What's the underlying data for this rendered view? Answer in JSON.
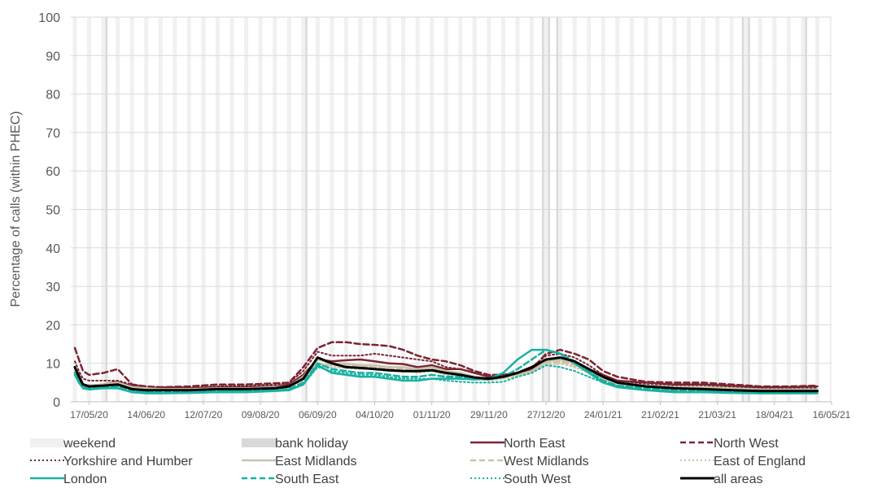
{
  "chart_data": {
    "type": "line",
    "ylabel": "Percentage of calls (within PHEC)",
    "ylim": [
      0,
      100
    ],
    "yticks": [
      "0",
      "10",
      "20",
      "30",
      "40",
      "50",
      "60",
      "70",
      "80",
      "90",
      "100"
    ],
    "xlim": [
      "2020-05-08",
      "2021-05-16"
    ],
    "xtick_dates": [
      "2020-05-17",
      "2020-06-14",
      "2020-07-12",
      "2020-08-09",
      "2020-09-06",
      "2020-10-04",
      "2020-11-01",
      "2020-11-29",
      "2020-12-27",
      "2021-01-24",
      "2021-02-21",
      "2021-03-21",
      "2021-04-18",
      "2021-05-16"
    ],
    "xtick_labels": [
      "17/05/20",
      "14/06/20",
      "12/07/20",
      "09/08/20",
      "06/09/20",
      "04/10/20",
      "01/11/20",
      "29/11/20",
      "27/12/20",
      "24/01/21",
      "21/02/21",
      "21/03/21",
      "18/04/21",
      "16/05/21"
    ],
    "background": {
      "weekend_label": "weekend",
      "bank_holiday_label": "bank holiday",
      "weekend_color": "#f0f0f0",
      "bank_holiday_color": "#d9d9d9",
      "bank_holidays": [
        "2020-05-25",
        "2020-08-31",
        "2020-12-25",
        "2020-12-28",
        "2021-01-01",
        "2021-04-02",
        "2021-04-05",
        "2021-05-03"
      ]
    },
    "x": [
      "2020-05-10",
      "2020-05-12",
      "2020-05-14",
      "2020-05-17",
      "2020-05-24",
      "2020-05-31",
      "2020-06-07",
      "2020-06-14",
      "2020-06-21",
      "2020-07-05",
      "2020-07-19",
      "2020-08-02",
      "2020-08-16",
      "2020-08-23",
      "2020-08-30",
      "2020-09-06",
      "2020-09-13",
      "2020-09-20",
      "2020-09-27",
      "2020-10-04",
      "2020-10-11",
      "2020-10-18",
      "2020-10-25",
      "2020-11-01",
      "2020-11-08",
      "2020-11-15",
      "2020-11-22",
      "2020-11-29",
      "2020-12-06",
      "2020-12-13",
      "2020-12-20",
      "2020-12-27",
      "2021-01-03",
      "2021-01-10",
      "2021-01-17",
      "2021-01-24",
      "2021-01-31",
      "2021-02-14",
      "2021-02-28",
      "2021-03-14",
      "2021-03-28",
      "2021-04-11",
      "2021-04-25",
      "2021-05-09"
    ],
    "series": [
      {
        "name": "North East",
        "color": "#7a2432",
        "dash": "solid",
        "width": 2.5,
        "values": [
          9,
          7,
          4.5,
          4.2,
          4.5,
          5.2,
          4,
          3.5,
          3.5,
          3.5,
          3.8,
          3.8,
          4,
          4.5,
          7,
          11,
          10.5,
          10.8,
          11,
          10.5,
          10,
          9.8,
          9,
          9.5,
          8.5,
          8.5,
          7.5,
          6.5,
          7,
          7.5,
          8.5,
          11,
          11.5,
          10,
          8.5,
          7,
          5.5,
          5,
          4.5,
          4.5,
          4.2,
          3.8,
          3.8,
          4
        ]
      },
      {
        "name": "North West",
        "color": "#7a2432",
        "dash": "7,4",
        "width": 2.5,
        "values": [
          14,
          11,
          8,
          7,
          7.5,
          8.5,
          4.5,
          4,
          3.8,
          4,
          4.5,
          4.5,
          4.8,
          5,
          9,
          14,
          15.5,
          15.5,
          15,
          14.8,
          14.5,
          13.5,
          12,
          11,
          10.5,
          9.5,
          8,
          7,
          7,
          7.5,
          8.5,
          12.5,
          13.5,
          12.5,
          11,
          8,
          6.5,
          5.2,
          5,
          5,
          4.5,
          4,
          4,
          4.2
        ]
      },
      {
        "name": "Yorkshire and Humber",
        "color": "#7a2432",
        "dash": "2,3",
        "width": 2,
        "values": [
          10.5,
          8,
          6,
          5.5,
          5.5,
          5.5,
          4.5,
          4,
          3.8,
          3.8,
          4,
          4.2,
          4.5,
          5,
          8,
          13,
          12,
          12,
          12,
          12.5,
          12,
          11.5,
          11,
          10.5,
          9,
          8.5,
          7.5,
          6.5,
          7,
          7.5,
          9,
          12,
          12.5,
          11.5,
          9.5,
          7,
          5.5,
          4.5,
          4,
          4,
          3.8,
          3.5,
          3.5,
          3.5
        ]
      },
      {
        "name": "East Midlands",
        "color": "#c9c4a8",
        "dash": "solid",
        "width": 2.5,
        "values": [
          8,
          6,
          4.5,
          4.2,
          4.5,
          5,
          3.8,
          3.5,
          3.3,
          3.3,
          3.5,
          3.5,
          3.8,
          4,
          6.5,
          11,
          10,
          10,
          9.5,
          9.5,
          9,
          9,
          8.5,
          9,
          8,
          7.5,
          6.5,
          6,
          6.5,
          7,
          8,
          10.5,
          11,
          10,
          8.5,
          6.5,
          5,
          4.2,
          3.8,
          3.8,
          3.5,
          3.2,
          3.2,
          3.2
        ]
      },
      {
        "name": "West Midlands",
        "color": "#c9c4a8",
        "dash": "7,4",
        "width": 2.5,
        "values": [
          8,
          6,
          4.5,
          4,
          4.2,
          4.5,
          3.5,
          3.2,
          3,
          3,
          3.2,
          3.3,
          3.5,
          3.8,
          6,
          10,
          9.5,
          9.5,
          9,
          9,
          8.5,
          8.5,
          8,
          8.5,
          7.5,
          7,
          6.2,
          5.8,
          6.2,
          7,
          8,
          10,
          10.5,
          9.5,
          8,
          6,
          4.8,
          4,
          3.5,
          3.5,
          3.2,
          3,
          3,
          3
        ]
      },
      {
        "name": "East of England",
        "color": "#c9c4a8",
        "dash": "2,3",
        "width": 2,
        "values": [
          7.5,
          5.5,
          4,
          3.8,
          4,
          4.2,
          3.2,
          3,
          2.8,
          2.8,
          3,
          3,
          3.2,
          3.5,
          5.5,
          9.5,
          9,
          8.8,
          8.5,
          8.5,
          8,
          8,
          7.5,
          8,
          7,
          6.8,
          6,
          5.5,
          6,
          6.5,
          7.5,
          9.5,
          10,
          9,
          7.5,
          5.8,
          4.5,
          3.8,
          3.3,
          3.2,
          3,
          2.8,
          2.8,
          2.8
        ]
      },
      {
        "name": "London",
        "color": "#17b1a0",
        "dash": "solid",
        "width": 2.5,
        "values": [
          7,
          5,
          3.5,
          3.2,
          3.5,
          3.5,
          2.5,
          2.2,
          2.2,
          2.3,
          2.5,
          2.5,
          2.8,
          3,
          4.5,
          9.5,
          7.5,
          7,
          6.5,
          6.5,
          6,
          5.5,
          5.5,
          6,
          6,
          6,
          5.8,
          6,
          7.5,
          11,
          13.5,
          13.5,
          12.5,
          10,
          7.5,
          5,
          3.8,
          3,
          2.5,
          2.5,
          2.3,
          2.2,
          2.2,
          2.2
        ]
      },
      {
        "name": "South East",
        "color": "#17b1a0",
        "dash": "7,4",
        "width": 2.5,
        "values": [
          7.5,
          5.5,
          4,
          3.5,
          3.8,
          4,
          3,
          2.7,
          2.5,
          2.5,
          2.8,
          2.8,
          3,
          3.3,
          5,
          10,
          8.5,
          8,
          7.5,
          7.5,
          7,
          6.5,
          6.5,
          7,
          6.5,
          6.5,
          6,
          5.8,
          6.5,
          8.5,
          11,
          13.5,
          12.5,
          10.5,
          8,
          5.5,
          4.2,
          3.5,
          3,
          3,
          2.8,
          2.5,
          2.5,
          2.5
        ]
      },
      {
        "name": "South West",
        "color": "#17b1a0",
        "dash": "2,3",
        "width": 2,
        "values": [
          7,
          5,
          3.8,
          3.3,
          3.5,
          3.8,
          2.8,
          2.5,
          2.3,
          2.5,
          2.8,
          2.8,
          3,
          3.2,
          4.5,
          9,
          8,
          7.5,
          7,
          7,
          6.5,
          6,
          6,
          6,
          5.5,
          5.2,
          5,
          5,
          5.2,
          6.5,
          7.5,
          9.5,
          9,
          8,
          6.5,
          5,
          4,
          3.2,
          2.8,
          2.8,
          2.5,
          2.5,
          2.5,
          2.5
        ]
      },
      {
        "name": "all areas",
        "color": "#000000",
        "dash": "solid",
        "width": 3,
        "values": [
          9,
          6.5,
          4.5,
          4,
          4.2,
          4.5,
          3.3,
          3,
          3,
          3,
          3.3,
          3.3,
          3.5,
          4,
          6,
          11.5,
          10,
          9,
          8.8,
          8.5,
          8.2,
          8,
          8,
          8.2,
          7.5,
          7,
          6.3,
          6,
          6.5,
          7.5,
          9,
          11,
          11.5,
          10.5,
          8.5,
          6.5,
          5,
          4,
          3.5,
          3.3,
          3,
          2.8,
          2.8,
          2.8
        ]
      }
    ]
  }
}
